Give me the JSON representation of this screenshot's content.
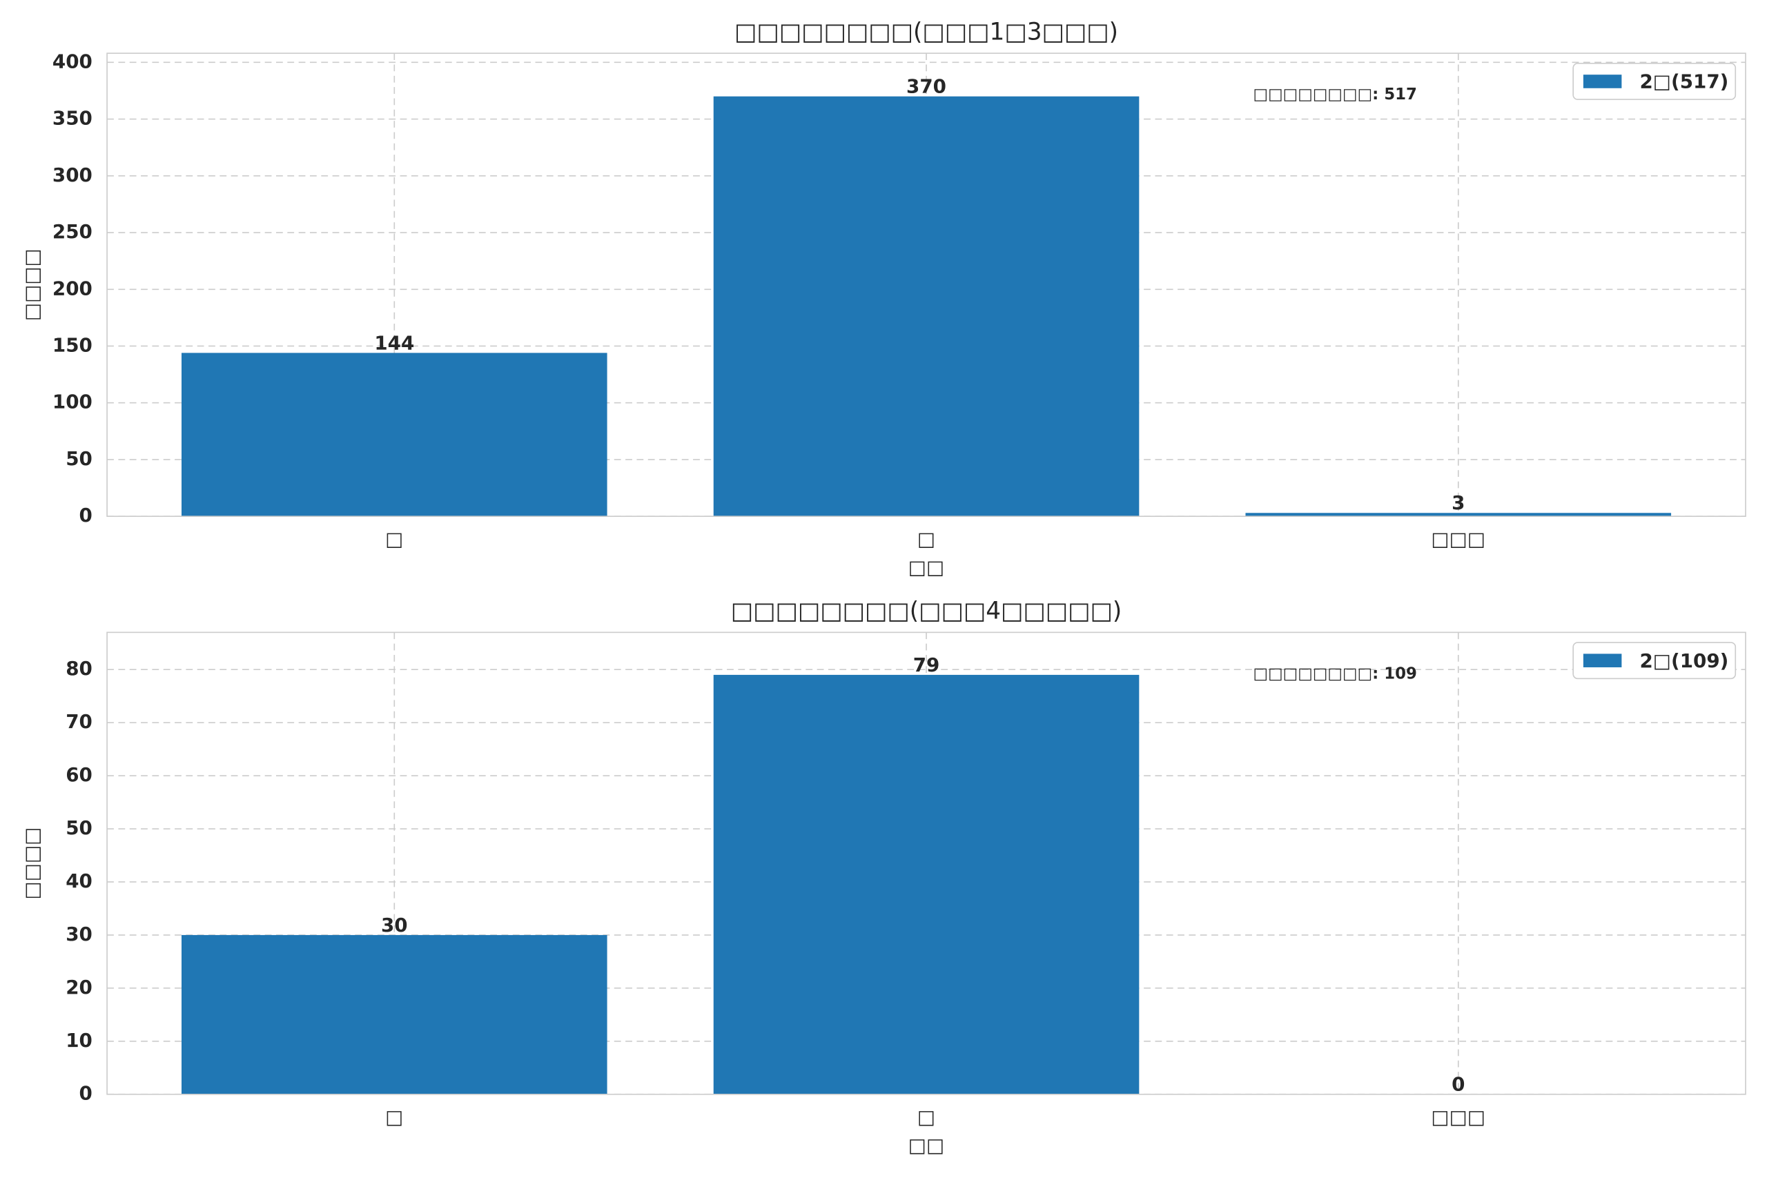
{
  "chart_data": [
    {
      "type": "bar",
      "title": "□□□□□□□□(□□□1□3□□□)",
      "x_label": "□□",
      "y_label": "□□□□",
      "categories": [
        "□",
        "□",
        "□□□"
      ],
      "series": [
        {
          "name": "2□(517)",
          "color": "#2077b4",
          "values": [
            144,
            370,
            3
          ]
        }
      ],
      "annotation": "□□□□□□□□: 517",
      "ylim": [
        0,
        408
      ],
      "yticks": [
        0,
        50,
        100,
        150,
        200,
        250,
        300,
        350,
        400
      ],
      "grid": true,
      "legend": "upper right"
    },
    {
      "type": "bar",
      "title": "□□□□□□□□(□□□4□□□□□)",
      "x_label": "□□",
      "y_label": "□□□□",
      "categories": [
        "□",
        "□",
        "□□□"
      ],
      "series": [
        {
          "name": "2□(109)",
          "color": "#2077b4",
          "values": [
            30,
            79,
            0
          ]
        }
      ],
      "annotation": "□□□□□□□□: 109",
      "ylim": [
        0,
        87
      ],
      "yticks": [
        0,
        10,
        20,
        30,
        40,
        50,
        60,
        70,
        80
      ],
      "grid": true,
      "legend": "upper right"
    }
  ]
}
